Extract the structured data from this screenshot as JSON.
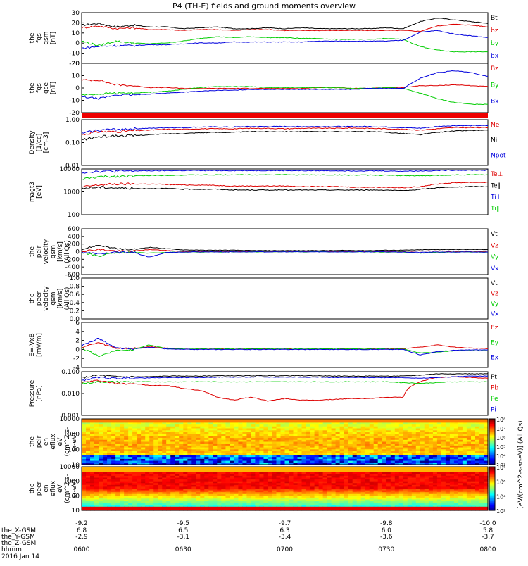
{
  "title": "P4 (TH-E) fields and ground moments overview",
  "colors": {
    "black": "#000000",
    "red": "#dd0000",
    "green": "#00cc00",
    "blue": "#0000dd"
  },
  "chart_data": [
    {
      "type": "line",
      "panel": "fgs_gsm",
      "ylabel": [
        "the",
        "fgs",
        "gsm",
        "[nT]"
      ],
      "yticks": [
        "30",
        "20",
        "10",
        "0",
        "-10",
        "-20"
      ],
      "ylim": [
        -25,
        32
      ],
      "series": [
        {
          "name": "Bt",
          "color": "black",
          "values": [
            18,
            20,
            16,
            18,
            16,
            16,
            14,
            15,
            16,
            14,
            14,
            15,
            14,
            15,
            14,
            14,
            14,
            14,
            15,
            14,
            22,
            26,
            24,
            22,
            20
          ]
        },
        {
          "name": "bz",
          "color": "red",
          "values": [
            15,
            17,
            14,
            15,
            13,
            13,
            12,
            13,
            13,
            12,
            13,
            13,
            12,
            12,
            12,
            12,
            12,
            12,
            12,
            12,
            11,
            17,
            19,
            18,
            16
          ]
        },
        {
          "name": "by",
          "color": "green",
          "values": [
            0,
            -5,
            0,
            -2,
            -3,
            -2,
            0,
            3,
            5,
            4,
            5,
            4,
            4,
            3,
            3,
            2,
            2,
            2,
            3,
            2,
            -6,
            -10,
            -12,
            -12,
            -12
          ]
        },
        {
          "name": "bx",
          "color": "blue",
          "values": [
            -8,
            -6,
            -5,
            -5,
            -4,
            -4,
            -3,
            -2,
            -2,
            -1,
            -1,
            -1,
            -1,
            -1,
            0,
            0,
            0,
            0,
            0,
            1,
            10,
            12,
            8,
            6,
            4
          ]
        }
      ]
    },
    {
      "type": "line",
      "panel": "fgs_gse",
      "ylabel": [
        "the",
        "fgs",
        "gse",
        "[nT]"
      ],
      "yticks": [
        "20",
        "10",
        "0",
        "-10",
        "-20"
      ],
      "ylim": [
        -25,
        28
      ],
      "series": [
        {
          "name": "Bz",
          "color": "red",
          "values": [
            10,
            10,
            5,
            4,
            2,
            2,
            1,
            1,
            1,
            1,
            1,
            1,
            1,
            1,
            2,
            2,
            1,
            1,
            2,
            2,
            4,
            4,
            5,
            4,
            3
          ]
        },
        {
          "name": "By",
          "color": "green",
          "values": [
            -6,
            -5,
            -4,
            -4,
            -3,
            -2,
            0,
            2,
            3,
            3,
            3,
            2,
            2,
            2,
            2,
            2,
            1,
            1,
            2,
            1,
            -4,
            -10,
            -14,
            -16,
            -16
          ]
        },
        {
          "name": "Bx",
          "color": "blue",
          "values": [
            -8,
            -10,
            -6,
            -6,
            -5,
            -4,
            -3,
            -2,
            -1,
            -1,
            0,
            0,
            0,
            0,
            0,
            0,
            0,
            1,
            1,
            1,
            12,
            18,
            20,
            18,
            14
          ]
        }
      ]
    },
    {
      "type": "line",
      "panel": "density",
      "ylabel": [
        "Density",
        "[1/cc]",
        "[cm-3]"
      ],
      "yticks": [
        "1.00",
        "0.10",
        "0.01"
      ],
      "ylog": true,
      "ylim": [
        0.01,
        1.0
      ],
      "series": [
        {
          "name": "Ne",
          "color": "red",
          "values": [
            0.22,
            0.3,
            0.3,
            0.33,
            0.35,
            0.38,
            0.38,
            0.4,
            0.4,
            0.4,
            0.42,
            0.42,
            0.4,
            0.42,
            0.42,
            0.42,
            0.43,
            0.42,
            0.4,
            0.38,
            0.35,
            0.4,
            0.45,
            0.45,
            0.45
          ]
        },
        {
          "name": "Ni",
          "color": "black",
          "values": [
            0.13,
            0.18,
            0.2,
            0.2,
            0.22,
            0.24,
            0.25,
            0.27,
            0.28,
            0.28,
            0.3,
            0.3,
            0.3,
            0.3,
            0.3,
            0.3,
            0.3,
            0.3,
            0.28,
            0.25,
            0.22,
            0.28,
            0.32,
            0.34,
            0.34
          ]
        },
        {
          "name": "Npot",
          "color": "blue",
          "values": [
            0.25,
            0.35,
            0.38,
            0.4,
            0.42,
            0.45,
            0.45,
            0.48,
            0.48,
            0.48,
            0.5,
            0.5,
            0.5,
            0.5,
            0.5,
            0.5,
            0.5,
            0.5,
            0.48,
            0.45,
            0.42,
            0.5,
            0.55,
            0.55,
            0.55
          ]
        }
      ]
    },
    {
      "type": "line",
      "panel": "temperature",
      "ylabel": [
        "magt3",
        "[eV]"
      ],
      "yticks": [
        "10000",
        "1000",
        "100"
      ],
      "ylog": true,
      "ylim": [
        100,
        10000
      ],
      "series": [
        {
          "name": "Te⊥",
          "color": "red",
          "values": [
            1600,
            2000,
            2200,
            2200,
            2200,
            2100,
            2000,
            2000,
            1900,
            1800,
            1800,
            1800,
            1800,
            1700,
            1700,
            1700,
            1600,
            1600,
            1600,
            1500,
            1700,
            2200,
            2500,
            2600,
            2600
          ]
        },
        {
          "name": "Te∥",
          "color": "black",
          "values": [
            1400,
            1600,
            1500,
            1400,
            1400,
            1400,
            1300,
            1300,
            1300,
            1200,
            1200,
            1200,
            1200,
            1200,
            1200,
            1200,
            1200,
            1200,
            1200,
            1100,
            1300,
            1500,
            1600,
            1700,
            1700
          ]
        },
        {
          "name": "Ti⊥",
          "color": "blue",
          "values": [
            7000,
            8000,
            8000,
            8200,
            8300,
            8400,
            8500,
            8500,
            8500,
            8500,
            8500,
            8500,
            8500,
            8400,
            8400,
            8400,
            8300,
            8300,
            8200,
            8000,
            8200,
            8500,
            8800,
            8800,
            8800
          ]
        },
        {
          "name": "Ti∥",
          "color": "green",
          "values": [
            3500,
            4500,
            4800,
            5000,
            5200,
            5300,
            5400,
            5500,
            5500,
            5600,
            5600,
            5600,
            5600,
            5500,
            5500,
            5500,
            5400,
            5400,
            5300,
            5200,
            5000,
            5200,
            5500,
            5600,
            5600
          ]
        }
      ]
    },
    {
      "type": "line",
      "panel": "peir_velocity",
      "ylabel": [
        "the",
        "peir",
        "velocity",
        "gsm",
        "[km/s]",
        "(All Qs)"
      ],
      "yticks": [
        "600",
        "400",
        "200",
        "0",
        "-200",
        "-400",
        "-600"
      ],
      "ylim": [
        -620,
        620
      ],
      "series": [
        {
          "name": "Vt",
          "color": "black",
          "values": [
            60,
            180,
            80,
            50,
            120,
            80,
            50,
            40,
            40,
            40,
            30,
            30,
            30,
            30,
            30,
            30,
            35,
            30,
            40,
            40,
            50,
            60,
            60,
            60,
            60
          ]
        },
        {
          "name": "Vz",
          "color": "red",
          "values": [
            10,
            60,
            20,
            10,
            60,
            30,
            10,
            5,
            5,
            5,
            5,
            5,
            5,
            5,
            5,
            5,
            5,
            5,
            10,
            10,
            20,
            20,
            10,
            10,
            10
          ]
        },
        {
          "name": "Vy",
          "color": "green",
          "values": [
            -20,
            -120,
            -30,
            -20,
            -40,
            -20,
            -10,
            -10,
            -10,
            -5,
            -5,
            -5,
            -5,
            -5,
            -5,
            -5,
            -5,
            -5,
            -10,
            -10,
            -40,
            -20,
            -10,
            -10,
            -10
          ]
        },
        {
          "name": "Vx",
          "color": "blue",
          "values": [
            -10,
            -60,
            -20,
            -10,
            -150,
            -20,
            -10,
            -5,
            -5,
            -5,
            -5,
            -5,
            -5,
            -5,
            -5,
            -5,
            -5,
            -5,
            -5,
            -10,
            -20,
            -10,
            -10,
            -10,
            -10
          ]
        }
      ]
    },
    {
      "type": "line",
      "panel": "peer_velocity",
      "ylabel": [
        "the",
        "peer",
        "velocity",
        "gsm",
        "[km/s]",
        "(All Qs)"
      ],
      "yticks": [
        "1.0",
        "0.8",
        "0.6",
        "0.4",
        "0.2",
        "0.0"
      ],
      "ylim": [
        0,
        1.0
      ],
      "series": [
        {
          "name": "Vt",
          "color": "black",
          "values": []
        },
        {
          "name": "Vz",
          "color": "red",
          "values": []
        },
        {
          "name": "Vy",
          "color": "green",
          "values": []
        },
        {
          "name": "Vx",
          "color": "blue",
          "values": []
        }
      ]
    },
    {
      "type": "line",
      "panel": "efield",
      "ylabel": [
        "E=-VxB",
        "[mV/m]"
      ],
      "yticks": [
        "6",
        "4",
        "2",
        "0",
        "-2",
        "-4"
      ],
      "ylim": [
        -4,
        6
      ],
      "series": [
        {
          "name": "Ez",
          "color": "red",
          "values": [
            0.5,
            1.5,
            0.3,
            0.2,
            0.6,
            0.3,
            0.1,
            0.1,
            0.1,
            0.1,
            0.1,
            0.1,
            0.1,
            0.1,
            0.1,
            0.1,
            0.1,
            0.1,
            0.1,
            0.2,
            0.5,
            1.0,
            0.5,
            0.3,
            0.2
          ]
        },
        {
          "name": "Ey",
          "color": "green",
          "values": [
            0.3,
            -1.5,
            -0.2,
            -0.1,
            1.0,
            0.2,
            0.1,
            0.1,
            0.1,
            0.1,
            0.1,
            0.1,
            0.1,
            0.1,
            0.1,
            0.1,
            0.1,
            0.1,
            0.1,
            0.1,
            -0.8,
            -0.6,
            -0.3,
            -0.3,
            -0.3
          ]
        },
        {
          "name": "Ex",
          "color": "blue",
          "values": [
            0.8,
            2.5,
            0.3,
            0.1,
            0.5,
            0.1,
            0.0,
            0.0,
            0.0,
            0.0,
            0.0,
            0.0,
            0.0,
            0.0,
            0.0,
            0.0,
            0.0,
            0.0,
            0.0,
            0.0,
            -1.2,
            -0.5,
            -0.2,
            -0.1,
            -0.1
          ]
        }
      ]
    },
    {
      "type": "line",
      "panel": "pressure",
      "ylabel": [
        "Pressure",
        "[nPa]"
      ],
      "yticks": [
        "0.100",
        "0.010",
        "0.001"
      ],
      "ylog": true,
      "ylim": [
        0.001,
        0.4
      ],
      "series": [
        {
          "name": "Pt",
          "color": "black",
          "values": [
            0.17,
            0.25,
            0.2,
            0.2,
            0.2,
            0.22,
            0.22,
            0.22,
            0.23,
            0.23,
            0.23,
            0.23,
            0.23,
            0.23,
            0.23,
            0.22,
            0.22,
            0.22,
            0.22,
            0.22,
            0.25,
            0.3,
            0.3,
            0.3,
            0.3
          ]
        },
        {
          "name": "Pb",
          "color": "red",
          "values": [
            0.09,
            0.12,
            0.08,
            0.08,
            0.06,
            0.06,
            0.04,
            0.03,
            0.012,
            0.008,
            0.012,
            0.007,
            0.01,
            0.008,
            0.008,
            0.009,
            0.01,
            0.01,
            0.012,
            0.012,
            0.1,
            0.18,
            0.2,
            0.18,
            0.16
          ]
        },
        {
          "name": "Pe",
          "color": "green",
          "values": [
            0.08,
            0.1,
            0.1,
            0.1,
            0.1,
            0.1,
            0.1,
            0.1,
            0.1,
            0.1,
            0.1,
            0.1,
            0.1,
            0.1,
            0.1,
            0.1,
            0.1,
            0.1,
            0.1,
            0.09,
            0.08,
            0.09,
            0.1,
            0.1,
            0.1
          ]
        },
        {
          "name": "Pi",
          "color": "blue",
          "values": [
            0.12,
            0.18,
            0.16,
            0.17,
            0.17,
            0.18,
            0.18,
            0.18,
            0.19,
            0.19,
            0.19,
            0.19,
            0.19,
            0.19,
            0.19,
            0.18,
            0.18,
            0.18,
            0.18,
            0.18,
            0.16,
            0.18,
            0.2,
            0.22,
            0.22
          ]
        }
      ]
    },
    {
      "type": "heatmap",
      "panel": "peir_en_eflux",
      "ylabel": [
        "the",
        "peir",
        "en",
        "eflux",
        "eV",
        "(cm^2-s-",
        "sr-eV)"
      ],
      "yticks": [
        "10000",
        "1000",
        "100",
        "10"
      ],
      "ylog": true,
      "ylim": [
        8,
        25000
      ]
    },
    {
      "type": "heatmap",
      "panel": "peer_en_eflux",
      "ylabel": [
        "the",
        "peer",
        "en",
        "eflux",
        "eV",
        "(cm^2-s-",
        "sr-eV)"
      ],
      "yticks": [
        "10000",
        "1000",
        "100",
        "10"
      ],
      "ylog": true,
      "ylim": [
        6,
        25000
      ]
    }
  ],
  "colorbar": {
    "label": "[eV/(cm^2-s-sr-eV)] (All Qs)",
    "label2": "eV/(cm^2-s-sr-eV)",
    "ticks_top": [
      "10⁸",
      "10⁷",
      "10⁶",
      "10⁵",
      "10⁴",
      "10³"
    ],
    "ticks_bottom": [
      "10⁸",
      "10⁶",
      "10⁴",
      "10²"
    ]
  },
  "x_axis": {
    "tick_rows": [
      {
        "name": "the_X-GSM",
        "values": [
          "6.8",
          "6.5",
          "6.3",
          "6.0",
          "5.8"
        ]
      },
      {
        "name": "the_Y-GSM",
        "values": [
          "-2.9",
          "-3.1",
          "-3.4",
          "-3.6",
          "-3.7"
        ]
      },
      {
        "name": "the_Z-GSM",
        "values": [
          "",
          "",
          "",
          "",
          ""
        ]
      },
      {
        "name": "hhmm",
        "values": [
          "0600",
          "0630",
          "0700",
          "0730",
          "0800"
        ]
      }
    ],
    "top_values": [
      "-9.2",
      "-9.5",
      "-9.7",
      "-9.8",
      "-10.0"
    ],
    "date": "2016 Jan 14"
  }
}
